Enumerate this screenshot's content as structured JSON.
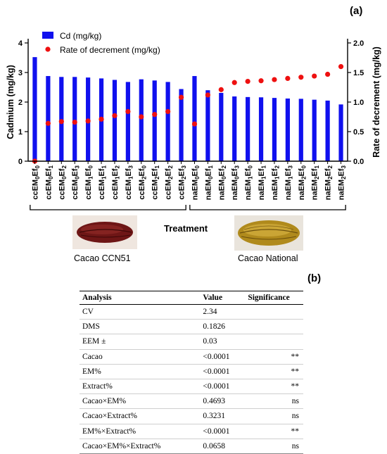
{
  "panel_a_label": "(a)",
  "panel_b_label": "(b)",
  "chart_data": {
    "type": "bar",
    "ylabel_left": "Cadmium (mg/kg)",
    "ylabel_right": "Rate of decrement (mg/kg)",
    "xlabel": "Treatment",
    "ylim_left": [
      0,
      4
    ],
    "ylim_right": [
      0,
      2.0
    ],
    "yticks_left": [
      "0",
      "1",
      "2",
      "3",
      "4"
    ],
    "yticks_right": [
      "0.0",
      "0.5",
      "1.0",
      "1.5",
      "2.0"
    ],
    "legend_position": "top-left",
    "categories": [
      {
        "p": "cc",
        "em": "0",
        "ef": "0"
      },
      {
        "p": "cc",
        "em": "0",
        "ef": "1"
      },
      {
        "p": "cc",
        "em": "0",
        "ef": "2"
      },
      {
        "p": "cc",
        "em": "0",
        "ef": "3"
      },
      {
        "p": "cc",
        "em": "1",
        "ef": "0"
      },
      {
        "p": "cc",
        "em": "1",
        "ef": "1"
      },
      {
        "p": "cc",
        "em": "1",
        "ef": "2"
      },
      {
        "p": "cc",
        "em": "1",
        "ef": "3"
      },
      {
        "p": "cc",
        "em": "2",
        "ef": "0"
      },
      {
        "p": "cc",
        "em": "2",
        "ef": "1"
      },
      {
        "p": "cc",
        "em": "2",
        "ef": "2"
      },
      {
        "p": "cc",
        "em": "2",
        "ef": "3"
      },
      {
        "p": "na",
        "em": "0",
        "ef": "0"
      },
      {
        "p": "na",
        "em": "0",
        "ef": "1"
      },
      {
        "p": "na",
        "em": "0",
        "ef": "2"
      },
      {
        "p": "na",
        "em": "0",
        "ef": "3"
      },
      {
        "p": "na",
        "em": "1",
        "ef": "0"
      },
      {
        "p": "na",
        "em": "1",
        "ef": "1"
      },
      {
        "p": "na",
        "em": "1",
        "ef": "2"
      },
      {
        "p": "na",
        "em": "1",
        "ef": "3"
      },
      {
        "p": "na",
        "em": "2",
        "ef": "0"
      },
      {
        "p": "na",
        "em": "2",
        "ef": "1"
      },
      {
        "p": "na",
        "em": "2",
        "ef": "2"
      },
      {
        "p": "na",
        "em": "2",
        "ef": "3"
      }
    ],
    "series": [
      {
        "name": "Cd (mg/kg)",
        "type": "bar",
        "axis": "left",
        "color": "#1010ee",
        "values": [
          3.52,
          2.88,
          2.85,
          2.85,
          2.83,
          2.8,
          2.75,
          2.68,
          2.77,
          2.73,
          2.68,
          2.44,
          2.88,
          2.4,
          2.31,
          2.19,
          2.17,
          2.16,
          2.14,
          2.12,
          2.11,
          2.08,
          2.05,
          1.92
        ]
      },
      {
        "name": "Rate of decrement (mg/kg)",
        "type": "scatter",
        "axis": "right",
        "color": "#ee1010",
        "values": [
          0.0,
          0.64,
          0.67,
          0.66,
          0.68,
          0.71,
          0.77,
          0.84,
          0.75,
          0.79,
          0.84,
          1.08,
          0.63,
          1.12,
          1.21,
          1.33,
          1.35,
          1.36,
          1.38,
          1.4,
          1.42,
          1.44,
          1.47,
          1.6
        ]
      }
    ]
  },
  "groups": {
    "left_caption": "Cacao CCN51",
    "right_caption": "Cacao National"
  },
  "table": {
    "headers": [
      "Analysis",
      "Value",
      "Significance"
    ],
    "rows": [
      {
        "analysis": "CV",
        "value": "2.34",
        "sig": ""
      },
      {
        "analysis": "DMS",
        "value": "0.1826",
        "sig": ""
      },
      {
        "analysis": "EEM ±",
        "value": "0.03",
        "sig": ""
      },
      {
        "analysis": "Cacao",
        "value": "<0.0001",
        "sig": "**"
      },
      {
        "analysis": "EM%",
        "value": "<0.0001",
        "sig": "**"
      },
      {
        "analysis": "Extract%",
        "value": "<0.0001",
        "sig": "**"
      },
      {
        "analysis": "Cacao×EM%",
        "value": "0.4693",
        "sig": "ns"
      },
      {
        "analysis": "Cacao×Extract%",
        "value": "0.3231",
        "sig": "ns"
      },
      {
        "analysis": "EM%×Extract%",
        "value": "<0.0001",
        "sig": "**"
      },
      {
        "analysis": "Cacao×EM%×Extract%",
        "value": "0.0658",
        "sig": "ns"
      }
    ]
  }
}
